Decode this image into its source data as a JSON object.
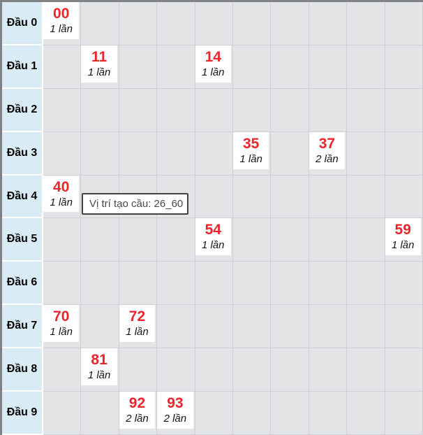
{
  "grid": {
    "columns_count": 10,
    "rows": [
      {
        "label": "Đầu 0",
        "cells": [
          {
            "col": 0,
            "value": "00",
            "count": "1 lần"
          }
        ]
      },
      {
        "label": "Đầu 1",
        "cells": [
          {
            "col": 1,
            "value": "11",
            "count": "1 lần"
          },
          {
            "col": 4,
            "value": "14",
            "count": "1 lần"
          }
        ]
      },
      {
        "label": "Đầu 2",
        "cells": []
      },
      {
        "label": "Đầu 3",
        "cells": [
          {
            "col": 5,
            "value": "35",
            "count": "1 lần"
          },
          {
            "col": 7,
            "value": "37",
            "count": "2 lần"
          }
        ]
      },
      {
        "label": "Đầu 4",
        "cells": [
          {
            "col": 0,
            "value": "40",
            "count": "1 lần"
          }
        ]
      },
      {
        "label": "Đầu 5",
        "cells": [
          {
            "col": 4,
            "value": "54",
            "count": "1 lần"
          },
          {
            "col": 9,
            "value": "59",
            "count": "1 lần"
          }
        ]
      },
      {
        "label": "Đầu 6",
        "cells": []
      },
      {
        "label": "Đầu 7",
        "cells": [
          {
            "col": 0,
            "value": "70",
            "count": "1 lần"
          },
          {
            "col": 2,
            "value": "72",
            "count": "1 lần"
          }
        ]
      },
      {
        "label": "Đầu 8",
        "cells": [
          {
            "col": 1,
            "value": "81",
            "count": "1 lần"
          }
        ]
      },
      {
        "label": "Đầu 9",
        "cells": [
          {
            "col": 2,
            "value": "92",
            "count": "2 lần"
          },
          {
            "col": 3,
            "value": "93",
            "count": "2 lần"
          }
        ]
      }
    ]
  },
  "tooltip": {
    "text": "Vị trí tạo cầu: 26_60"
  },
  "colors": {
    "accent_red": "#ea252b",
    "label_blue": "#d9ecf6",
    "cell_gray": "#e3e4e6",
    "grid_line": "#cdd0d3",
    "outer_border": "#7f8386",
    "tooltip_border": "#424242"
  }
}
